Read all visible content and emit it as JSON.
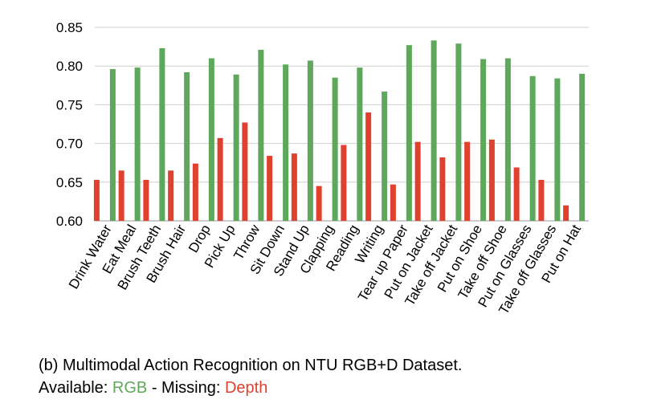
{
  "chart_data": {
    "type": "bar",
    "categories": [
      "Drink Water",
      "Eat Meal",
      "Brush Teeth",
      "Brush Hair",
      "Drop",
      "Pick Up",
      "Throw",
      "Sit Down",
      "Stand Up",
      "Clapping",
      "Reading",
      "Writing",
      "Tear up Paper",
      "Put on Jacket",
      "Take off Jacket",
      "Put on Shoe",
      "Take off Shoe",
      "Put on Glasses",
      "Take off Glasses",
      "Put on Hat"
    ],
    "series": [
      {
        "name": "Depth",
        "color": "#e0412f",
        "values": [
          0.653,
          0.665,
          0.653,
          0.665,
          0.674,
          0.707,
          0.727,
          0.684,
          0.687,
          0.645,
          0.698,
          0.74,
          0.647,
          0.702,
          0.682,
          0.702,
          0.705,
          0.669,
          0.653,
          0.62
        ]
      },
      {
        "name": "RGB",
        "color": "#5ea85c",
        "values": [
          0.796,
          0.798,
          0.823,
          0.792,
          0.81,
          0.789,
          0.821,
          0.802,
          0.807,
          0.785,
          0.798,
          0.767,
          0.827,
          0.833,
          0.829,
          0.809,
          0.81,
          0.787,
          0.784,
          0.79
        ]
      }
    ],
    "ylim": [
      0.6,
      0.85
    ],
    "yticks": [
      "0.60",
      "0.65",
      "0.70",
      "0.75",
      "0.80",
      "0.85"
    ],
    "grid": true,
    "xlabel": "",
    "ylabel": ""
  },
  "caption": {
    "line1": "(b) Multimodal Action Recognition on NTU RGB+D Dataset.",
    "line2_prefix": "Available: ",
    "available_label": "RGB",
    "separator": " - Missing: ",
    "missing_label": "Depth"
  }
}
